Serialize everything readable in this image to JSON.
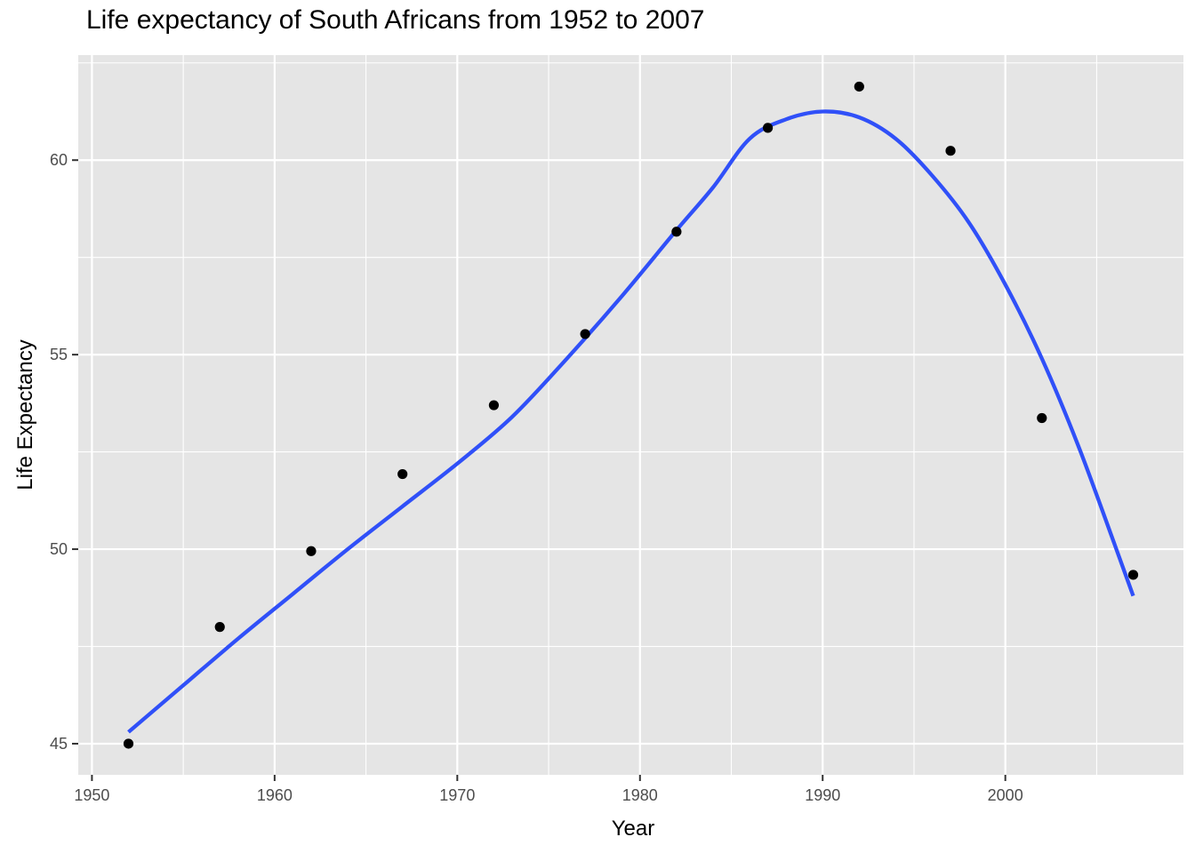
{
  "chart_data": {
    "type": "scatter",
    "title": "Life expectancy of South Africans from 1952 to 2007",
    "xlabel": "Year",
    "ylabel": "Life Expectancy",
    "xlim": [
      1949.25,
      2009.75
    ],
    "ylim": [
      44.2,
      62.7
    ],
    "x_ticks": [
      1950,
      1960,
      1970,
      1980,
      1990,
      2000
    ],
    "y_ticks": [
      45,
      50,
      55,
      60
    ],
    "grid": true,
    "panel_background": "#e5e5e5",
    "grid_color": "#ffffff",
    "point_color": "#000000",
    "smooth_color": "#3050f8",
    "points": [
      {
        "x": 1952,
        "y": 45.0
      },
      {
        "x": 1957,
        "y": 48.0
      },
      {
        "x": 1962,
        "y": 49.95
      },
      {
        "x": 1967,
        "y": 51.93
      },
      {
        "x": 1972,
        "y": 53.7
      },
      {
        "x": 1977,
        "y": 55.53
      },
      {
        "x": 1982,
        "y": 58.16
      },
      {
        "x": 1987,
        "y": 60.83
      },
      {
        "x": 1992,
        "y": 61.89
      },
      {
        "x": 1997,
        "y": 60.24
      },
      {
        "x": 2002,
        "y": 53.37
      },
      {
        "x": 2007,
        "y": 49.34
      }
    ],
    "smooth_line": [
      {
        "x": 1952,
        "y": 45.3
      },
      {
        "x": 1955,
        "y": 46.5
      },
      {
        "x": 1958,
        "y": 47.7
      },
      {
        "x": 1961,
        "y": 48.85
      },
      {
        "x": 1964,
        "y": 50.0
      },
      {
        "x": 1967,
        "y": 51.1
      },
      {
        "x": 1970,
        "y": 52.2
      },
      {
        "x": 1973,
        "y": 53.4
      },
      {
        "x": 1976,
        "y": 54.9
      },
      {
        "x": 1979,
        "y": 56.5
      },
      {
        "x": 1982,
        "y": 58.2
      },
      {
        "x": 1984,
        "y": 59.3
      },
      {
        "x": 1986,
        "y": 60.55
      },
      {
        "x": 1988,
        "y": 61.05
      },
      {
        "x": 1990,
        "y": 61.25
      },
      {
        "x": 1992,
        "y": 61.1
      },
      {
        "x": 1994,
        "y": 60.55
      },
      {
        "x": 1996,
        "y": 59.6
      },
      {
        "x": 1998,
        "y": 58.4
      },
      {
        "x": 2000,
        "y": 56.8
      },
      {
        "x": 2002,
        "y": 54.9
      },
      {
        "x": 2004,
        "y": 52.65
      },
      {
        "x": 2006,
        "y": 50.1
      },
      {
        "x": 2007,
        "y": 48.8
      }
    ]
  }
}
